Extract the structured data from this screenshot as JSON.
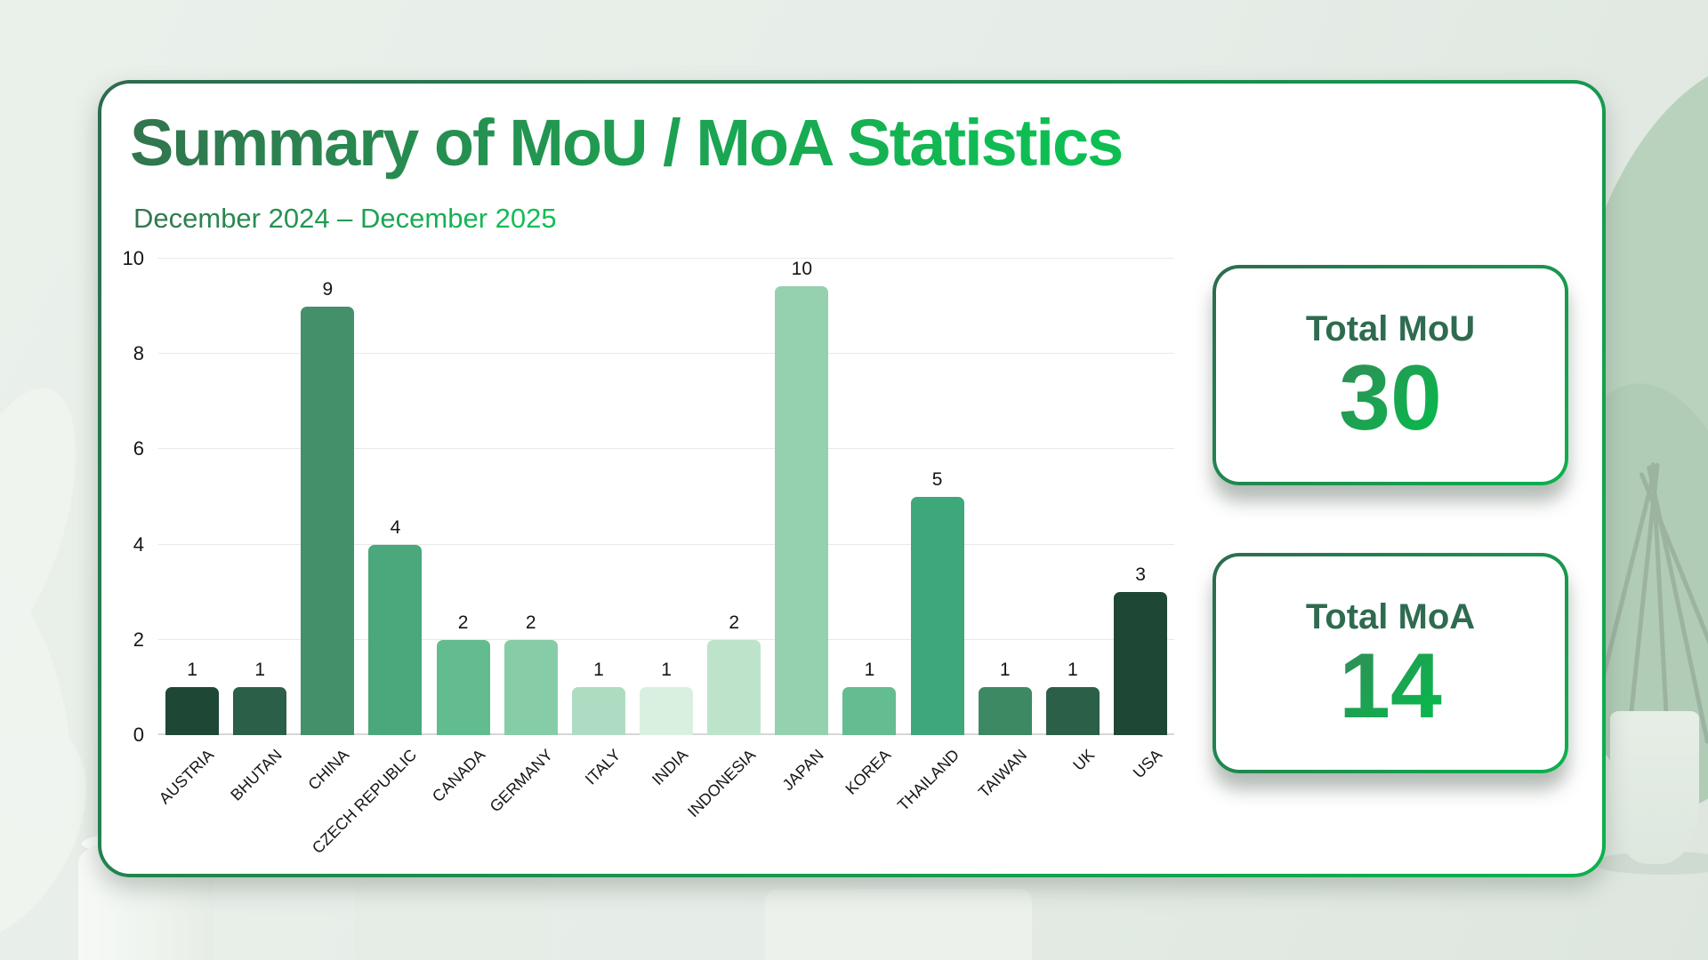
{
  "header": {
    "title": "Summary of MoU / MoA Statistics",
    "subtitle": "December 2024 – December 2025"
  },
  "chart_data": {
    "type": "bar",
    "title": "Summary of MoU / MoA Statistics",
    "subtitle": "December 2024 – December 2025",
    "categories": [
      "AUSTRIA",
      "BHUTAN",
      "CHINA",
      "CZECH REPUBLIC",
      "CANADA",
      "GERMANY",
      "ITALY",
      "INDIA",
      "INDONESIA",
      "JAPAN",
      "KOREA",
      "THAILAND",
      "TAIWAN",
      "UK",
      "USA"
    ],
    "values": [
      1,
      1,
      9,
      4,
      2,
      2,
      1,
      1,
      2,
      10,
      1,
      5,
      1,
      1,
      3
    ],
    "bar_colors": [
      "#1e4735",
      "#2c5f48",
      "#43906b",
      "#4aa87c",
      "#63bc90",
      "#86cda7",
      "#aedcc2",
      "#d9f0e0",
      "#bde4cb",
      "#95d1af",
      "#64bc91",
      "#3fa87a",
      "#3d8964",
      "#2c5f48",
      "#1e4735"
    ],
    "ylim": [
      0,
      10
    ],
    "yticks": [
      0,
      2,
      4,
      6,
      8,
      10
    ],
    "grid": true,
    "legend": false,
    "value_labels_shown": true,
    "xlabel": "",
    "ylabel": ""
  },
  "stat_cards": [
    {
      "label": "Total MoU",
      "value": "30"
    },
    {
      "label": "Total MoA",
      "value": "14"
    }
  ],
  "colors": {
    "accent-dark": "#2e6b4f",
    "accent-bright": "#0db14e",
    "grid-line": "#e9e9e9",
    "axis-line": "#d7d7d7",
    "label-text": "#161616",
    "background": "#e8ede8"
  },
  "decorations": {
    "right": "potted-plant-with-large-leaves",
    "left": "faint-leaf-silhouettes",
    "bottom_left": "white-pedestal-and-slab"
  }
}
